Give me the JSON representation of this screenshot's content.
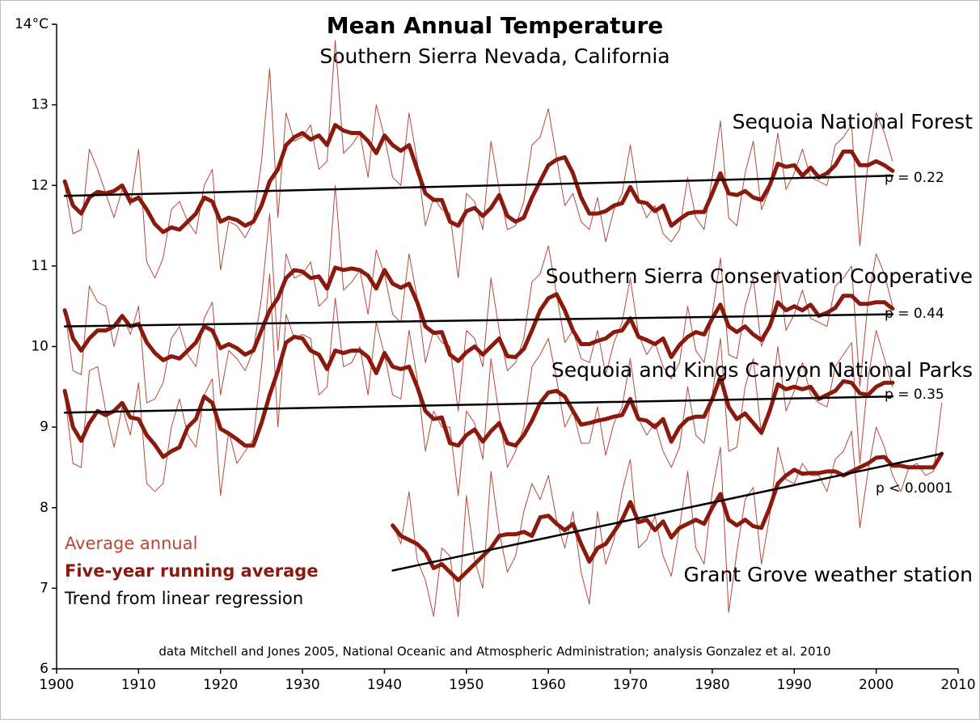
{
  "chart_data": {
    "type": "line",
    "title": "Mean Annual Temperature",
    "subtitle": "Southern Sierra Nevada, California",
    "note": "data Mitchell and Jones 2005, National Oceanic and Atmospheric Administration; analysis Gonzalez et al. 2010",
    "legend": [
      "Average annual",
      "Five-year running average",
      "Trend from linear regression"
    ],
    "annual_color": "#b5483c",
    "running_color": "#8b1a0e",
    "trend_color": "#000000",
    "xlim": [
      1900,
      2010
    ],
    "ylim": [
      6,
      14
    ],
    "xticks": [
      1900,
      1910,
      1920,
      1930,
      1940,
      1950,
      1960,
      1970,
      1980,
      1990,
      2000,
      2010
    ],
    "yticks": [
      6,
      7,
      8,
      9,
      10,
      11,
      12,
      13,
      {
        "value": 14,
        "label": "14°C"
      }
    ],
    "x": [
      1901,
      1902,
      1903,
      1904,
      1905,
      1906,
      1907,
      1908,
      1909,
      1910,
      1911,
      1912,
      1913,
      1914,
      1915,
      1916,
      1917,
      1918,
      1919,
      1920,
      1921,
      1922,
      1923,
      1924,
      1925,
      1926,
      1927,
      1928,
      1929,
      1930,
      1931,
      1932,
      1933,
      1934,
      1935,
      1936,
      1937,
      1938,
      1939,
      1940,
      1941,
      1942,
      1943,
      1944,
      1945,
      1946,
      1947,
      1948,
      1949,
      1950,
      1951,
      1952,
      1953,
      1954,
      1955,
      1956,
      1957,
      1958,
      1959,
      1960,
      1961,
      1962,
      1963,
      1964,
      1965,
      1966,
      1967,
      1968,
      1969,
      1970,
      1971,
      1972,
      1973,
      1974,
      1975,
      1976,
      1977,
      1978,
      1979,
      1980,
      1981,
      1982,
      1983,
      1984,
      1985,
      1986,
      1987,
      1988,
      1989,
      1990,
      1991,
      1992,
      1993,
      1994,
      1995,
      1996,
      1997,
      1998,
      1999,
      2000,
      2001,
      2002,
      2003,
      2004,
      2005,
      2006,
      2007,
      2008
    ],
    "series": [
      {
        "name": "Sequoia National Forest",
        "p_label": "p = 0.22",
        "annual": [
          12.0,
          11.4,
          11.45,
          12.45,
          12.2,
          11.9,
          11.6,
          11.95,
          11.75,
          12.45,
          11.05,
          10.85,
          11.1,
          11.7,
          11.8,
          11.55,
          11.4,
          12.0,
          12.2,
          10.95,
          11.55,
          11.5,
          11.35,
          11.55,
          12.3,
          13.45,
          11.6,
          12.9,
          12.55,
          12.6,
          12.75,
          12.2,
          12.3,
          13.8,
          12.4,
          12.5,
          12.65,
          12.1,
          13.0,
          12.6,
          12.1,
          12.0,
          12.9,
          12.3,
          11.5,
          11.85,
          11.7,
          11.65,
          10.85,
          11.9,
          11.8,
          11.45,
          12.55,
          11.95,
          11.45,
          11.5,
          11.8,
          12.5,
          12.6,
          12.95,
          12.35,
          11.75,
          11.9,
          11.55,
          11.45,
          11.85,
          11.3,
          11.7,
          11.9,
          12.5,
          11.85,
          11.6,
          11.75,
          11.4,
          11.3,
          11.45,
          12.1,
          11.6,
          11.45,
          12.1,
          12.8,
          11.6,
          11.5,
          12.15,
          12.55,
          11.7,
          11.95,
          12.65,
          11.95,
          12.15,
          12.45,
          12.1,
          12.05,
          12.0,
          12.5,
          12.6,
          12.75,
          11.25,
          12.3,
          12.9,
          12.65,
          12.3,
          null,
          null,
          null,
          null,
          null,
          null
        ],
        "running": [
          12.05,
          11.75,
          11.65,
          11.85,
          11.92,
          11.9,
          11.93,
          12.0,
          11.8,
          11.85,
          11.7,
          11.52,
          11.42,
          11.48,
          11.45,
          11.55,
          11.65,
          11.85,
          11.8,
          11.55,
          11.6,
          11.57,
          11.5,
          11.55,
          11.75,
          12.05,
          12.2,
          12.5,
          12.6,
          12.65,
          12.57,
          12.62,
          12.5,
          12.75,
          12.68,
          12.65,
          12.65,
          12.55,
          12.4,
          12.62,
          12.5,
          12.43,
          12.5,
          12.2,
          11.9,
          11.82,
          11.82,
          11.55,
          11.5,
          11.68,
          11.72,
          11.62,
          11.72,
          11.88,
          11.62,
          11.55,
          11.6,
          11.85,
          12.05,
          12.25,
          12.32,
          12.35,
          12.15,
          11.85,
          11.65,
          11.65,
          11.68,
          11.75,
          11.78,
          11.98,
          11.8,
          11.78,
          11.68,
          11.75,
          11.5,
          11.58,
          11.65,
          11.67,
          11.67,
          11.9,
          12.15,
          11.9,
          11.88,
          11.93,
          11.85,
          11.82,
          12.0,
          12.27,
          12.23,
          12.25,
          12.12,
          12.22,
          12.1,
          12.15,
          12.25,
          12.42,
          12.42,
          12.25,
          12.25,
          12.3,
          12.25,
          12.18,
          null,
          null,
          null,
          null,
          null,
          null
        ],
        "trend": {
          "x": [
            1901,
            2002
          ],
          "values": [
            11.87,
            12.12
          ]
        }
      },
      {
        "name": "Southern Sierra Conservation Cooperative",
        "p_label": "p = 0.44",
        "annual": [
          10.45,
          9.7,
          9.65,
          10.75,
          10.55,
          10.5,
          10.0,
          10.4,
          10.15,
          10.5,
          9.3,
          9.35,
          9.55,
          10.1,
          10.25,
          9.9,
          9.75,
          10.35,
          10.55,
          9.4,
          9.95,
          9.85,
          9.7,
          9.95,
          10.6,
          11.65,
          9.95,
          11.15,
          10.85,
          10.9,
          11.05,
          10.5,
          10.6,
          12.0,
          10.7,
          10.8,
          10.95,
          10.4,
          11.2,
          10.9,
          10.4,
          10.3,
          11.15,
          10.6,
          9.8,
          10.2,
          10.05,
          10.0,
          9.2,
          10.2,
          10.1,
          9.75,
          10.85,
          10.2,
          9.7,
          9.8,
          10.1,
          10.8,
          10.9,
          11.25,
          10.65,
          10.05,
          10.2,
          9.85,
          9.8,
          10.2,
          9.65,
          10.05,
          10.3,
          10.85,
          10.15,
          9.9,
          10.05,
          9.75,
          9.6,
          9.8,
          10.5,
          9.95,
          9.8,
          10.4,
          11.1,
          9.9,
          9.85,
          10.5,
          10.85,
          10.0,
          10.25,
          10.95,
          10.2,
          10.4,
          10.7,
          10.35,
          10.3,
          10.25,
          10.75,
          10.85,
          11.0,
          9.5,
          10.55,
          11.15,
          10.9,
          10.5,
          null,
          null,
          null,
          null,
          null,
          null
        ],
        "running": [
          10.45,
          10.1,
          9.95,
          10.1,
          10.2,
          10.2,
          10.25,
          10.38,
          10.25,
          10.28,
          10.05,
          9.92,
          9.83,
          9.88,
          9.85,
          9.95,
          10.05,
          10.25,
          10.2,
          9.98,
          10.03,
          9.98,
          9.9,
          9.95,
          10.2,
          10.45,
          10.6,
          10.85,
          10.95,
          10.93,
          10.85,
          10.87,
          10.72,
          10.98,
          10.95,
          10.97,
          10.95,
          10.88,
          10.72,
          10.95,
          10.78,
          10.73,
          10.78,
          10.55,
          10.25,
          10.17,
          10.18,
          9.9,
          9.82,
          9.93,
          10.0,
          9.9,
          10.0,
          10.1,
          9.88,
          9.87,
          9.97,
          10.2,
          10.45,
          10.6,
          10.65,
          10.45,
          10.2,
          10.03,
          10.03,
          10.07,
          10.1,
          10.18,
          10.2,
          10.35,
          10.12,
          10.08,
          10.03,
          10.1,
          9.87,
          10.02,
          10.12,
          10.18,
          10.15,
          10.35,
          10.52,
          10.25,
          10.18,
          10.25,
          10.15,
          10.08,
          10.25,
          10.55,
          10.45,
          10.5,
          10.45,
          10.52,
          10.38,
          10.42,
          10.48,
          10.63,
          10.63,
          10.53,
          10.53,
          10.55,
          10.55,
          10.47,
          null,
          null,
          null,
          null,
          null,
          null
        ],
        "trend": {
          "x": [
            1901,
            2002
          ],
          "values": [
            10.25,
            10.4
          ]
        }
      },
      {
        "name": "Sequoia and Kings Canyon National Parks",
        "p_label": "p = 0.35",
        "annual": [
          9.4,
          8.55,
          8.5,
          9.7,
          9.75,
          9.2,
          8.75,
          9.25,
          8.9,
          9.55,
          8.3,
          8.2,
          8.3,
          9.0,
          9.35,
          8.9,
          8.75,
          9.4,
          9.6,
          8.15,
          8.95,
          8.55,
          8.7,
          8.85,
          9.75,
          10.9,
          9.0,
          10.4,
          10.1,
          10.15,
          10.1,
          9.4,
          9.5,
          10.6,
          9.75,
          9.8,
          10.0,
          9.4,
          10.3,
          9.9,
          9.4,
          9.35,
          10.2,
          9.6,
          8.7,
          9.2,
          9.0,
          9.0,
          8.15,
          9.2,
          9.05,
          8.6,
          9.85,
          9.15,
          8.5,
          8.7,
          9.0,
          9.75,
          9.9,
          10.1,
          9.6,
          9.0,
          9.2,
          8.8,
          8.8,
          9.25,
          8.65,
          9.05,
          9.25,
          9.85,
          9.1,
          8.9,
          9.05,
          8.7,
          8.5,
          8.75,
          9.5,
          8.9,
          8.8,
          9.4,
          10.1,
          8.7,
          8.75,
          9.5,
          9.85,
          8.9,
          9.15,
          10.0,
          9.2,
          9.45,
          9.8,
          9.4,
          9.3,
          9.25,
          9.75,
          9.9,
          10.05,
          8.55,
          9.6,
          10.2,
          9.85,
          9.5,
          null,
          null,
          null,
          null,
          null,
          null
        ],
        "running": [
          9.45,
          9.0,
          8.83,
          9.05,
          9.2,
          9.15,
          9.2,
          9.3,
          9.12,
          9.1,
          8.9,
          8.78,
          8.63,
          8.7,
          8.75,
          9.0,
          9.1,
          9.38,
          9.3,
          8.98,
          8.92,
          8.85,
          8.77,
          8.77,
          9.05,
          9.4,
          9.7,
          10.05,
          10.12,
          10.1,
          9.95,
          9.9,
          9.72,
          9.95,
          9.92,
          9.95,
          9.95,
          9.87,
          9.67,
          9.92,
          9.75,
          9.72,
          9.75,
          9.5,
          9.2,
          9.1,
          9.12,
          8.8,
          8.77,
          8.9,
          8.97,
          8.82,
          8.95,
          9.05,
          8.8,
          8.77,
          8.9,
          9.08,
          9.3,
          9.43,
          9.45,
          9.38,
          9.2,
          9.03,
          9.05,
          9.08,
          9.1,
          9.13,
          9.15,
          9.35,
          9.1,
          9.08,
          9.0,
          9.1,
          8.82,
          9.0,
          9.1,
          9.13,
          9.13,
          9.35,
          9.62,
          9.25,
          9.1,
          9.17,
          9.05,
          8.93,
          9.2,
          9.53,
          9.47,
          9.5,
          9.47,
          9.5,
          9.35,
          9.4,
          9.45,
          9.57,
          9.55,
          9.42,
          9.4,
          9.5,
          9.55,
          9.55,
          null,
          null,
          null,
          null,
          null,
          null
        ],
        "trend": {
          "x": [
            1901,
            2002
          ],
          "values": [
            9.18,
            9.38
          ]
        }
      },
      {
        "name": "Grant Grove weather station",
        "p_label": "p < 0.0001",
        "annual": [
          null,
          null,
          null,
          null,
          null,
          null,
          null,
          null,
          null,
          null,
          null,
          null,
          null,
          null,
          null,
          null,
          null,
          null,
          null,
          null,
          null,
          null,
          null,
          null,
          null,
          null,
          null,
          null,
          null,
          null,
          null,
          null,
          null,
          null,
          null,
          null,
          null,
          null,
          null,
          null,
          7.8,
          7.55,
          8.2,
          7.35,
          7.1,
          6.65,
          7.5,
          7.4,
          6.65,
          8.15,
          7.35,
          7.0,
          8.45,
          7.7,
          7.2,
          7.4,
          7.95,
          8.3,
          8.1,
          8.4,
          7.85,
          7.5,
          7.95,
          7.2,
          6.8,
          7.95,
          7.3,
          7.6,
          8.2,
          8.6,
          7.5,
          7.6,
          7.9,
          7.4,
          7.15,
          7.75,
          8.45,
          7.5,
          7.3,
          8.2,
          8.75,
          6.7,
          7.45,
          8.1,
          8.25,
          7.3,
          7.9,
          8.75,
          8.35,
          8.3,
          8.55,
          8.4,
          8.4,
          8.2,
          8.6,
          8.7,
          8.95,
          7.75,
          8.45,
          9.0,
          8.75,
          8.4,
          8.2,
          8.5,
          8.55,
          8.4,
          8.45,
          9.3
        ],
        "running": [
          null,
          null,
          null,
          null,
          null,
          null,
          null,
          null,
          null,
          null,
          null,
          null,
          null,
          null,
          null,
          null,
          null,
          null,
          null,
          null,
          null,
          null,
          null,
          null,
          null,
          null,
          null,
          null,
          null,
          null,
          null,
          null,
          null,
          null,
          null,
          null,
          null,
          null,
          null,
          null,
          7.78,
          7.65,
          7.6,
          7.55,
          7.45,
          7.25,
          7.3,
          7.2,
          7.1,
          7.2,
          7.3,
          7.4,
          7.5,
          7.65,
          7.67,
          7.67,
          7.7,
          7.65,
          7.88,
          7.9,
          7.8,
          7.72,
          7.8,
          7.55,
          7.33,
          7.5,
          7.55,
          7.7,
          7.85,
          8.07,
          7.82,
          7.85,
          7.72,
          7.83,
          7.63,
          7.75,
          7.8,
          7.85,
          7.8,
          8.0,
          8.17,
          7.85,
          7.78,
          7.85,
          7.77,
          7.75,
          8.0,
          8.3,
          8.4,
          8.47,
          8.42,
          8.43,
          8.43,
          8.45,
          8.45,
          8.4,
          8.45,
          8.5,
          8.55,
          8.62,
          8.63,
          8.52,
          8.52,
          8.5,
          8.5,
          8.5,
          8.5,
          8.67
        ],
        "trend": {
          "x": [
            1941,
            2008
          ],
          "values": [
            7.22,
            8.67
          ]
        }
      }
    ]
  }
}
